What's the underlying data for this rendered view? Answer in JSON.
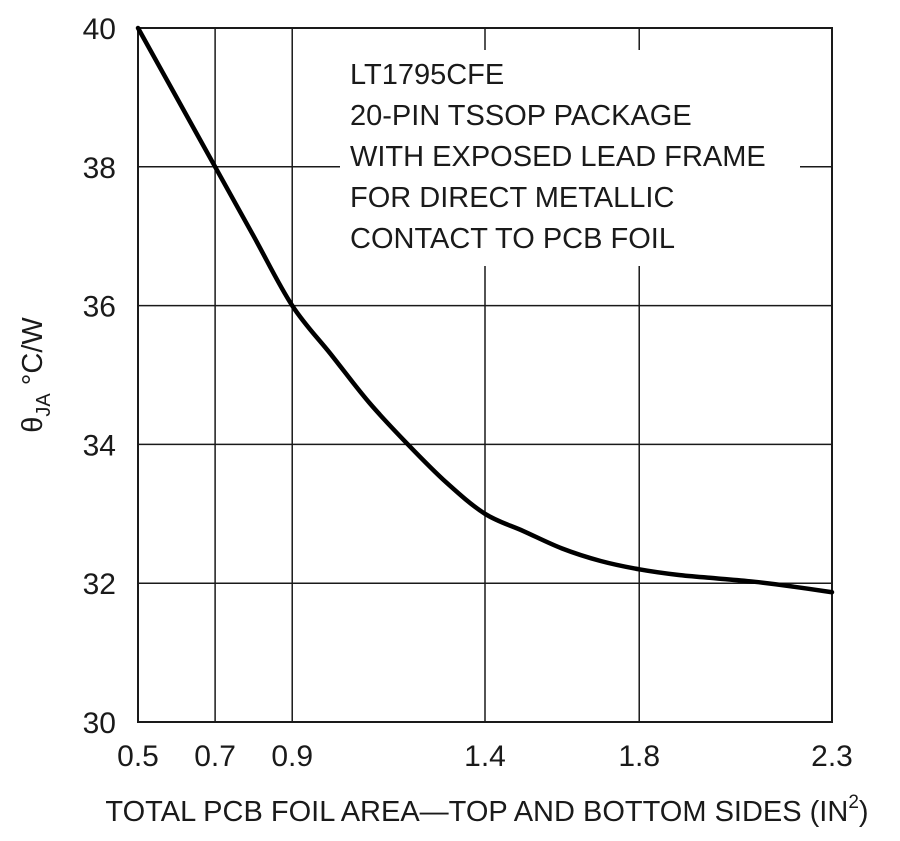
{
  "chart_data": {
    "type": "line",
    "xlabel": {
      "main": "TOTAL PCB FOIL AREA—TOP AND BOTTOM SIDES (IN",
      "superscript": "2",
      "suffix": ")"
    },
    "ylabel": {
      "symbol": "θ",
      "subscript": "JA",
      "unit": " °C/W"
    },
    "x_ticks": [
      {
        "value": 0.5,
        "label": "0.5"
      },
      {
        "value": 0.7,
        "label": "0.7"
      },
      {
        "value": 0.9,
        "label": "0.9"
      },
      {
        "value": 1.4,
        "label": "1.4"
      },
      {
        "value": 1.8,
        "label": "1.8"
      },
      {
        "value": 2.3,
        "label": "2.3"
      }
    ],
    "y_ticks": [
      {
        "value": 30,
        "label": "30"
      },
      {
        "value": 32,
        "label": "32"
      },
      {
        "value": 34,
        "label": "34"
      },
      {
        "value": 36,
        "label": "36"
      },
      {
        "value": 38,
        "label": "38"
      },
      {
        "value": 40,
        "label": "40"
      }
    ],
    "xlim": [
      0.5,
      2.3
    ],
    "ylim": [
      30,
      40
    ],
    "grid": true,
    "annotation_lines": [
      "LT1795CFE",
      "20-PIN TSSOP PACKAGE",
      "WITH EXPOSED LEAD FRAME",
      "FOR DIRECT METALLIC",
      "CONTACT TO PCB FOIL"
    ],
    "series": [
      {
        "color": "#000000",
        "points": [
          [
            0.5,
            40.0
          ],
          [
            0.6,
            39.0
          ],
          [
            0.7,
            38.0
          ],
          [
            0.8,
            37.0
          ],
          [
            0.9,
            36.0
          ],
          [
            1.0,
            35.3
          ],
          [
            1.1,
            34.6
          ],
          [
            1.2,
            34.0
          ],
          [
            1.3,
            33.45
          ],
          [
            1.4,
            33.0
          ],
          [
            1.5,
            32.75
          ],
          [
            1.6,
            32.5
          ],
          [
            1.7,
            32.32
          ],
          [
            1.8,
            32.2
          ],
          [
            1.9,
            32.12
          ],
          [
            2.0,
            32.07
          ],
          [
            2.1,
            32.02
          ],
          [
            2.2,
            31.95
          ],
          [
            2.3,
            31.87
          ]
        ]
      }
    ]
  }
}
